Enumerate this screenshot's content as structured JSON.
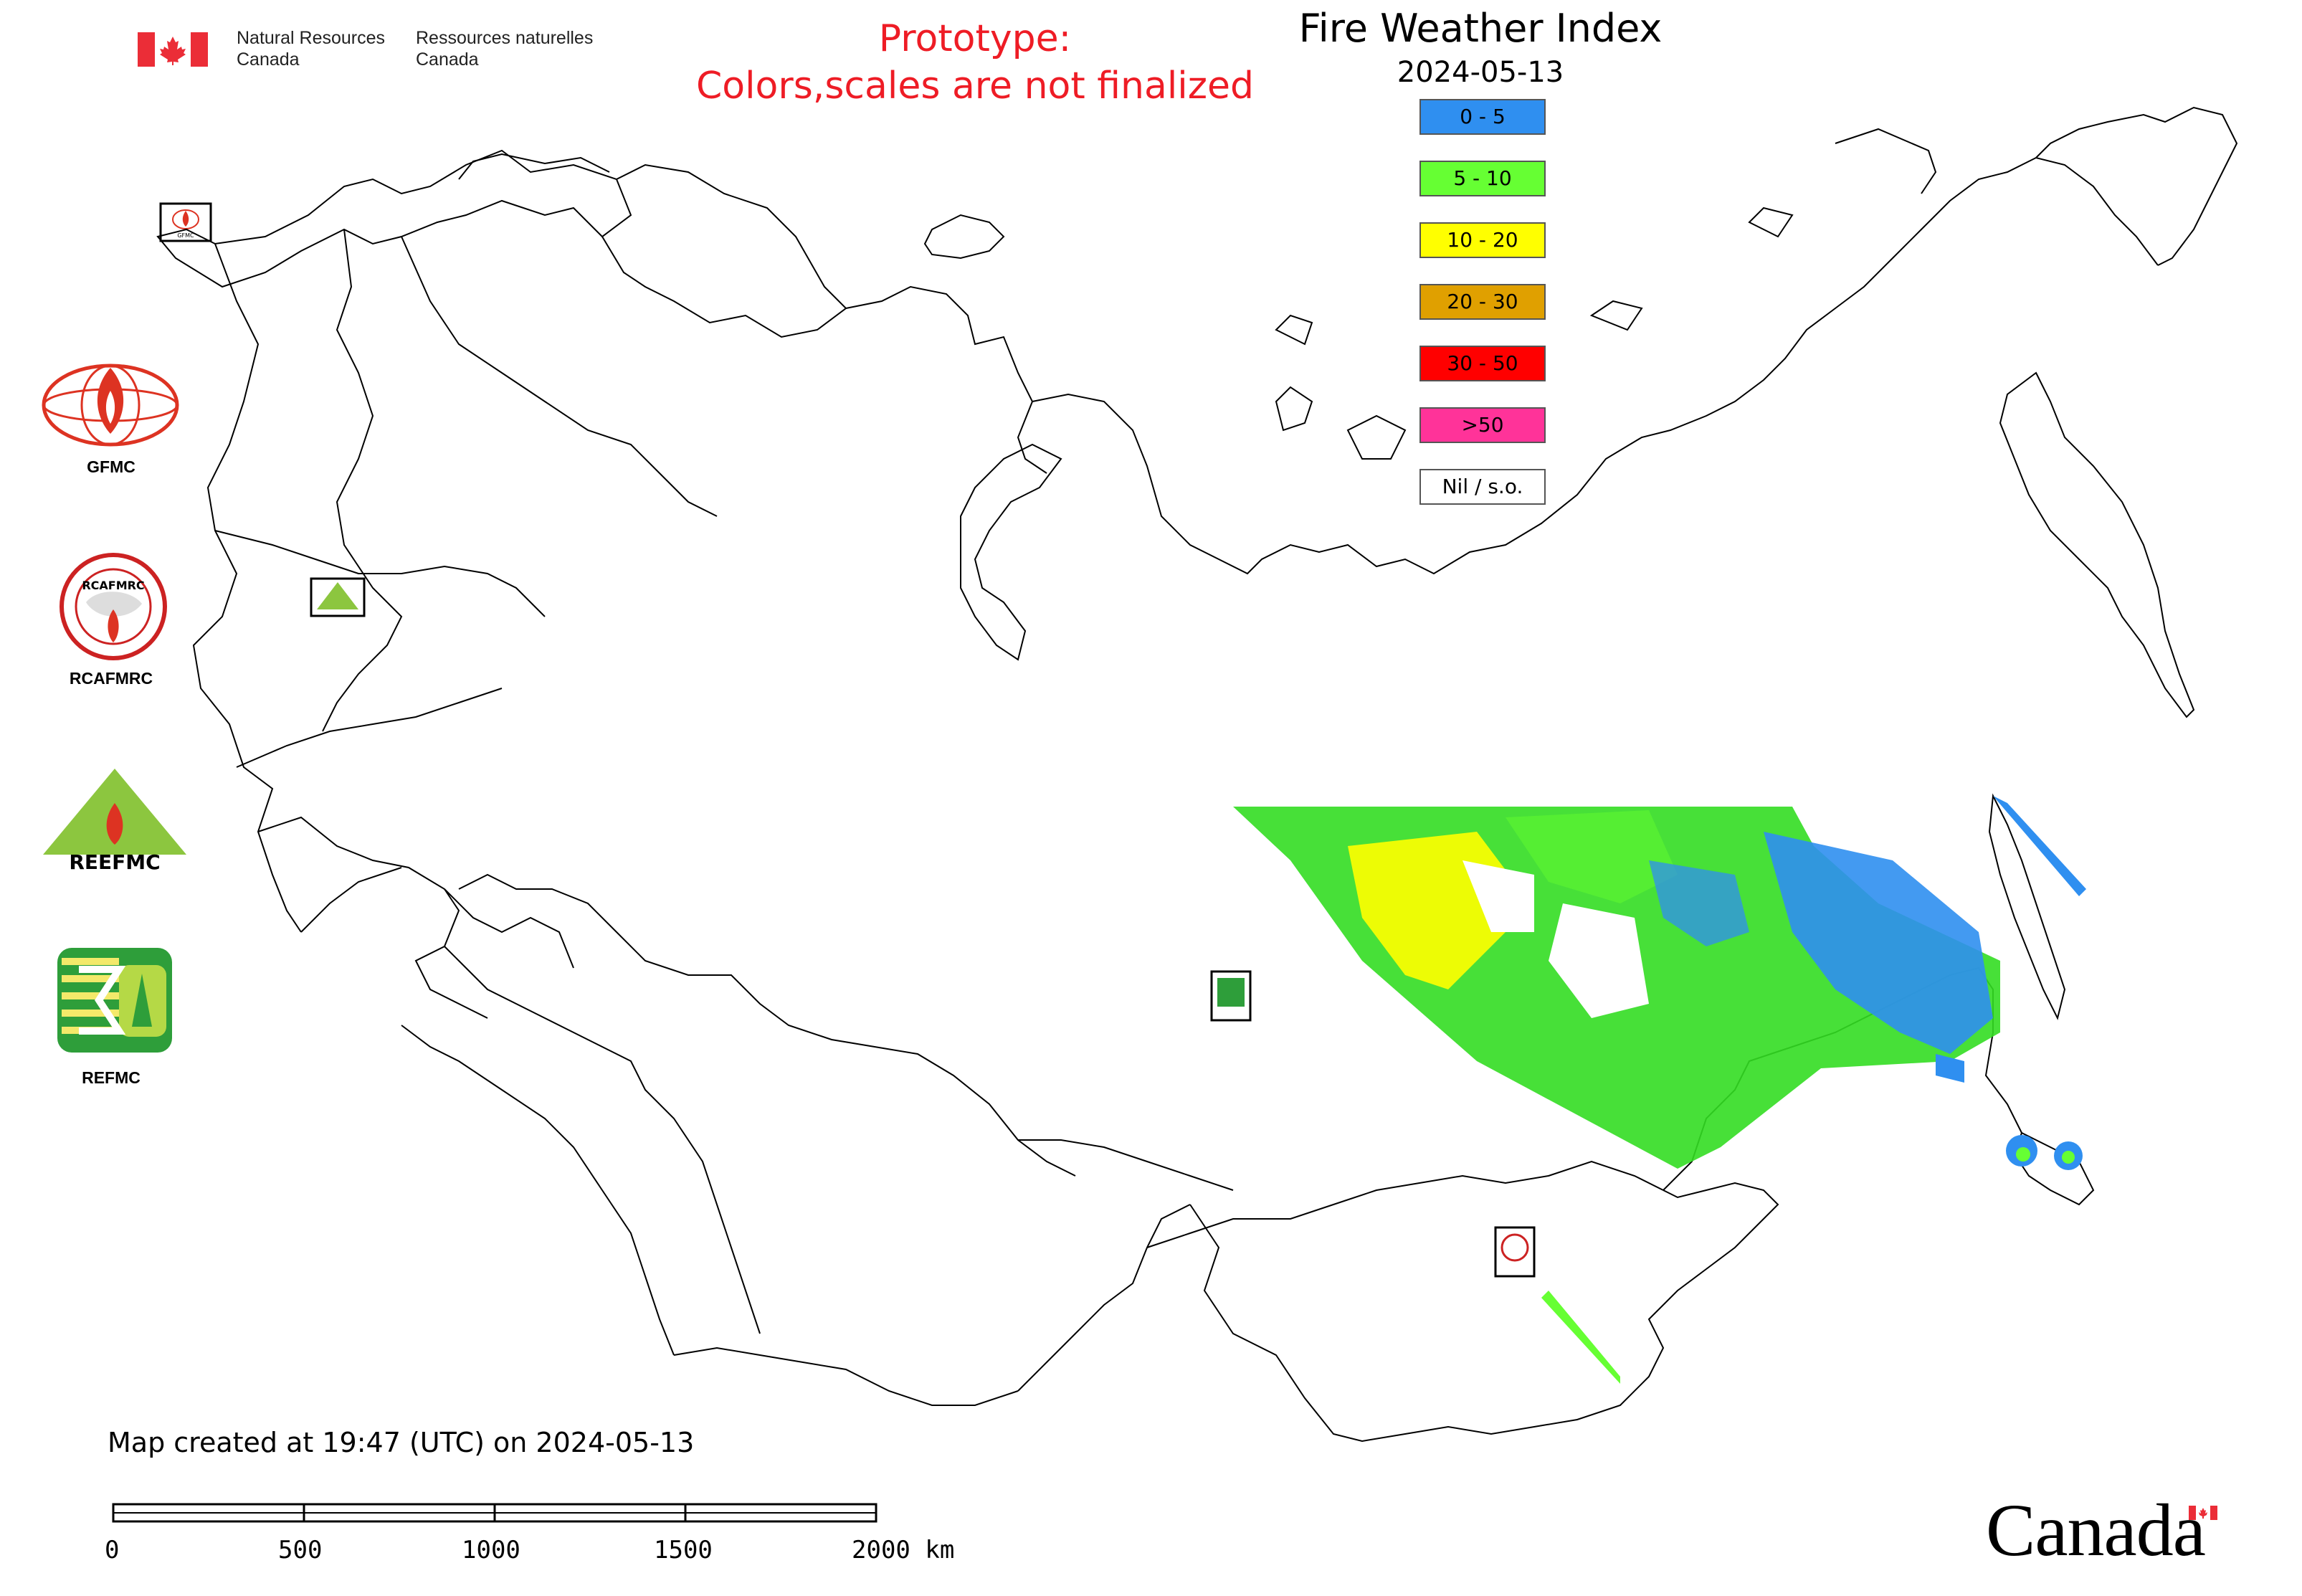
{
  "header": {
    "dept_en": [
      "Natural Resources",
      "Canada"
    ],
    "dept_fr": [
      "Ressources naturelles",
      "Canada"
    ],
    "prototype_line1": "Prototype:",
    "prototype_line2": "Colors,scales are not finalized"
  },
  "map": {
    "title": "Fire Weather Index",
    "date": "2024-05-13",
    "created_note": "Map created at 19:47 (UTC) on 2024-05-13"
  },
  "legend": [
    {
      "label": "0 - 5",
      "color": "#2f8ff0"
    },
    {
      "label": "5 - 10",
      "color": "#66ff33"
    },
    {
      "label": "10 - 20",
      "color": "#ffff00"
    },
    {
      "label": "20 - 30",
      "color": "#e0a000"
    },
    {
      "label": "30 - 50",
      "color": "#ff0000"
    },
    {
      "label": ">50",
      "color": "#ff3399"
    },
    {
      "label": "Nil / s.o.",
      "color": "#ffffff"
    }
  ],
  "logos": {
    "gfmc": "GFMC",
    "rcafmrc": "RCAFMRC",
    "reefmc": "REEFMC",
    "refmc": "REFMC",
    "ring_text_gfmc": "GFMC",
    "ring_text_rcafmrc": "RCAFMRC",
    "ring_text_reefmc": "REEFMC"
  },
  "scale_bar": {
    "ticks": [
      "0",
      "500",
      "1000",
      "1500",
      "2000 km"
    ]
  },
  "wordmark": "Canada",
  "colors": {
    "prototype_text": "#ee1c25",
    "canada_red": "#eb2d37"
  }
}
